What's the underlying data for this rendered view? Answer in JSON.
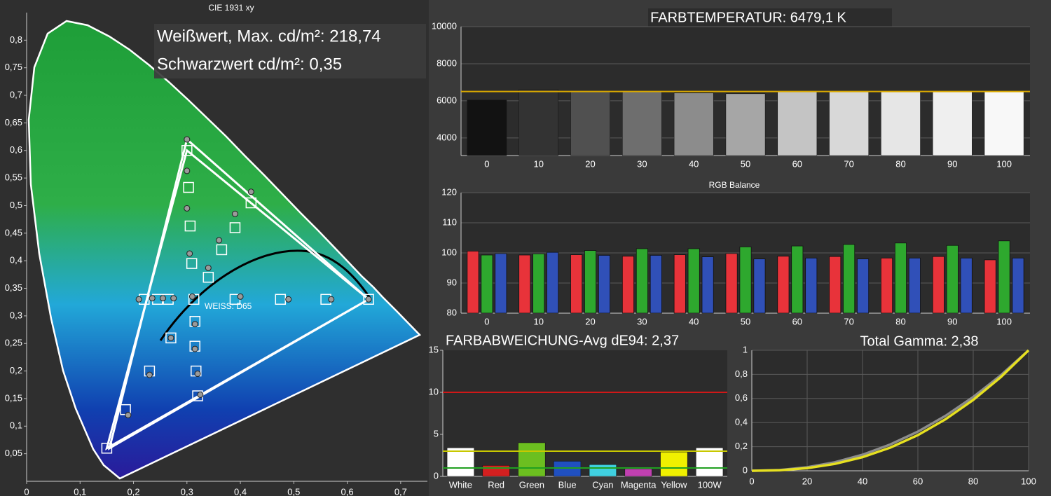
{
  "chart_data": [
    {
      "type": "scatter",
      "title": "CIE 1931 xy",
      "annotations": [
        "Weißwert, Max. cd/m²: 218,74",
        "Schwarzwert cd/m²: 0,35",
        "WEISS: D65"
      ],
      "xlim": [
        0,
        0.75
      ],
      "ylim": [
        0,
        0.85
      ],
      "xticks": [
        0,
        {
          "value": 0.1,
          "label": "0,1"
        },
        {
          "value": 0.2,
          "label": "0,2"
        },
        {
          "value": 0.3,
          "label": "0,3"
        },
        {
          "value": 0.4,
          "label": "0,4"
        },
        {
          "value": 0.5,
          "label": "0,5"
        },
        {
          "value": 0.6,
          "label": "0,6"
        },
        {
          "value": 0.7,
          "label": "0,7"
        }
      ],
      "yticks": [
        {
          "value": 0.05,
          "label": "0,05"
        },
        {
          "value": 0.1,
          "label": "0,1"
        },
        {
          "value": 0.15,
          "label": "0,15"
        },
        {
          "value": 0.2,
          "label": "0,2"
        },
        {
          "value": 0.25,
          "label": "0,25"
        },
        {
          "value": 0.3,
          "label": "0,3"
        },
        {
          "value": 0.35,
          "label": "0,35"
        },
        {
          "value": 0.4,
          "label": "0,4"
        },
        {
          "value": 0.45,
          "label": "0,45"
        },
        {
          "value": 0.5,
          "label": "0,5"
        },
        {
          "value": 0.55,
          "label": "0,55"
        },
        {
          "value": 0.6,
          "label": "0,6"
        },
        {
          "value": 0.65,
          "label": "0,65"
        },
        {
          "value": 0.7,
          "label": "0,7"
        },
        {
          "value": 0.75,
          "label": "0,75"
        },
        {
          "value": 0.8,
          "label": "0,8"
        }
      ],
      "grid": false,
      "gamut": [
        {
          "color": "#ffffff",
          "x": [
            0.64,
            0.3,
            0.15
          ],
          "y": [
            0.33,
            0.6,
            0.06
          ]
        },
        {
          "color": "#ffffff",
          "x": [
            0.64,
            0.3,
            0.155
          ],
          "y": [
            0.33,
            0.62,
            0.06
          ]
        }
      ],
      "series": [
        {
          "marker": "square",
          "color": "#ffffff",
          "x": [
            0.3,
            0.303,
            0.306,
            0.309,
            0.313,
            0.42,
            0.39,
            0.365,
            0.34,
            0.64,
            0.56,
            0.475,
            0.39,
            0.15,
            0.185,
            0.23,
            0.27,
            0.32,
            0.317,
            0.315,
            0.315,
            0.22,
            0.245,
            0.265
          ],
          "y": [
            0.6,
            0.533,
            0.463,
            0.395,
            0.33,
            0.505,
            0.46,
            0.42,
            0.37,
            0.33,
            0.33,
            0.33,
            0.33,
            0.06,
            0.13,
            0.2,
            0.26,
            0.155,
            0.2,
            0.245,
            0.29,
            0.33,
            0.33,
            0.33
          ]
        },
        {
          "marker": "circle",
          "color": "#9a9a9a",
          "x": [
            0.3,
            0.3,
            0.3,
            0.305,
            0.31,
            0.42,
            0.39,
            0.36,
            0.34,
            0.64,
            0.57,
            0.49,
            0.4,
            0.19,
            0.23,
            0.27,
            0.325,
            0.32,
            0.315,
            0.315,
            0.21,
            0.235,
            0.255,
            0.275
          ],
          "y": [
            0.62,
            0.563,
            0.495,
            0.413,
            0.335,
            0.525,
            0.485,
            0.437,
            0.387,
            0.33,
            0.33,
            0.33,
            0.335,
            0.12,
            0.193,
            0.26,
            0.157,
            0.195,
            0.24,
            0.285,
            0.33,
            0.332,
            0.332,
            0.332
          ]
        }
      ]
    },
    {
      "type": "bar",
      "title": "FARBTEMPERATUR: 6479,1 K",
      "categories": [
        "0",
        "10",
        "20",
        "30",
        "40",
        "50",
        "60",
        "70",
        "80",
        "90",
        "100"
      ],
      "values": [
        6040,
        6600,
        6490,
        6490,
        6420,
        6380,
        6490,
        6490,
        6490,
        6490,
        6530
      ],
      "colors": [
        "#121212",
        "#333333",
        "#505050",
        "#6e6e6e",
        "#8c8c8c",
        "#a6a6a6",
        "#c4c4c4",
        "#d8d8d8",
        "#e6e6e6",
        "#efefef",
        "#f8f8f8"
      ],
      "ylim": [
        3050,
        10000
      ],
      "yticks": [
        4000,
        6000,
        8000,
        10000
      ],
      "grid": true,
      "reference_lines": [
        {
          "value": 6500,
          "color": "#d9a800"
        }
      ]
    },
    {
      "type": "grouped_bar",
      "title": "RGB Balance",
      "categories": [
        "0",
        "10",
        "20",
        "30",
        "40",
        "50",
        "60",
        "70",
        "80",
        "90",
        "100"
      ],
      "series": [
        {
          "color": "#e8333a",
          "values": [
            100.6,
            99.3,
            99.4,
            98.9,
            99.4,
            99.8,
            98.9,
            98.8,
            98.3,
            98.8,
            97.7
          ]
        },
        {
          "color": "#2ea82e",
          "values": [
            99.3,
            99.7,
            100.8,
            101.4,
            101.4,
            102.0,
            102.3,
            102.8,
            103.3,
            102.5,
            104.0
          ]
        },
        {
          "color": "#3050b8",
          "values": [
            99.8,
            100.2,
            99.2,
            99.2,
            98.7,
            98.0,
            98.3,
            98.0,
            98.3,
            98.3,
            98.3
          ]
        }
      ],
      "ylim": [
        80,
        120
      ],
      "yticks": [
        80,
        90,
        100,
        110,
        120
      ],
      "grid": true
    },
    {
      "type": "bar",
      "title": "FARBABWEICHUNG-Avg dE94: 2,37",
      "categories": [
        "White",
        "Red",
        "Green",
        "Blue",
        "Cyan",
        "Magenta",
        "Yellow",
        "100W"
      ],
      "values": [
        3.4,
        1.3,
        4.0,
        1.8,
        1.4,
        0.9,
        2.9,
        3.4
      ],
      "colors": [
        "#ffffff",
        "#d42020",
        "#6cbf20",
        "#2050c0",
        "#40d0e0",
        "#c040b0",
        "#f0f000",
        "#ffffff"
      ],
      "ylim": [
        0,
        15
      ],
      "yticks": [
        0,
        5,
        10,
        15
      ],
      "grid": false,
      "reference_lines": [
        {
          "value": 10,
          "color": "#d01818"
        },
        {
          "value": 3,
          "color": "#c8c800"
        },
        {
          "value": 1,
          "color": "#20a020"
        }
      ]
    },
    {
      "type": "line",
      "title": "Total Gamma: 2,38",
      "x": [
        0,
        10,
        20,
        30,
        40,
        50,
        60,
        70,
        80,
        90,
        100
      ],
      "series": [
        {
          "color": "#8c8c8c",
          "values": [
            0,
            0.006,
            0.029,
            0.071,
            0.133,
            0.218,
            0.325,
            0.456,
            0.612,
            0.793,
            1
          ]
        },
        {
          "color": "#e6e020",
          "values": [
            0,
            0.004,
            0.022,
            0.057,
            0.113,
            0.192,
            0.296,
            0.428,
            0.588,
            0.778,
            1
          ]
        }
      ],
      "xlim": [
        0,
        100
      ],
      "ylim": [
        0,
        1
      ],
      "xticks": [
        0,
        20,
        40,
        60,
        80,
        100
      ],
      "yticks": [
        0,
        {
          "value": 0.2,
          "label": "0,2"
        },
        {
          "value": 0.4,
          "label": "0,4"
        },
        {
          "value": 0.6,
          "label": "0,6"
        },
        {
          "value": 0.8,
          "label": "0,8"
        },
        1
      ],
      "grid": true
    }
  ]
}
